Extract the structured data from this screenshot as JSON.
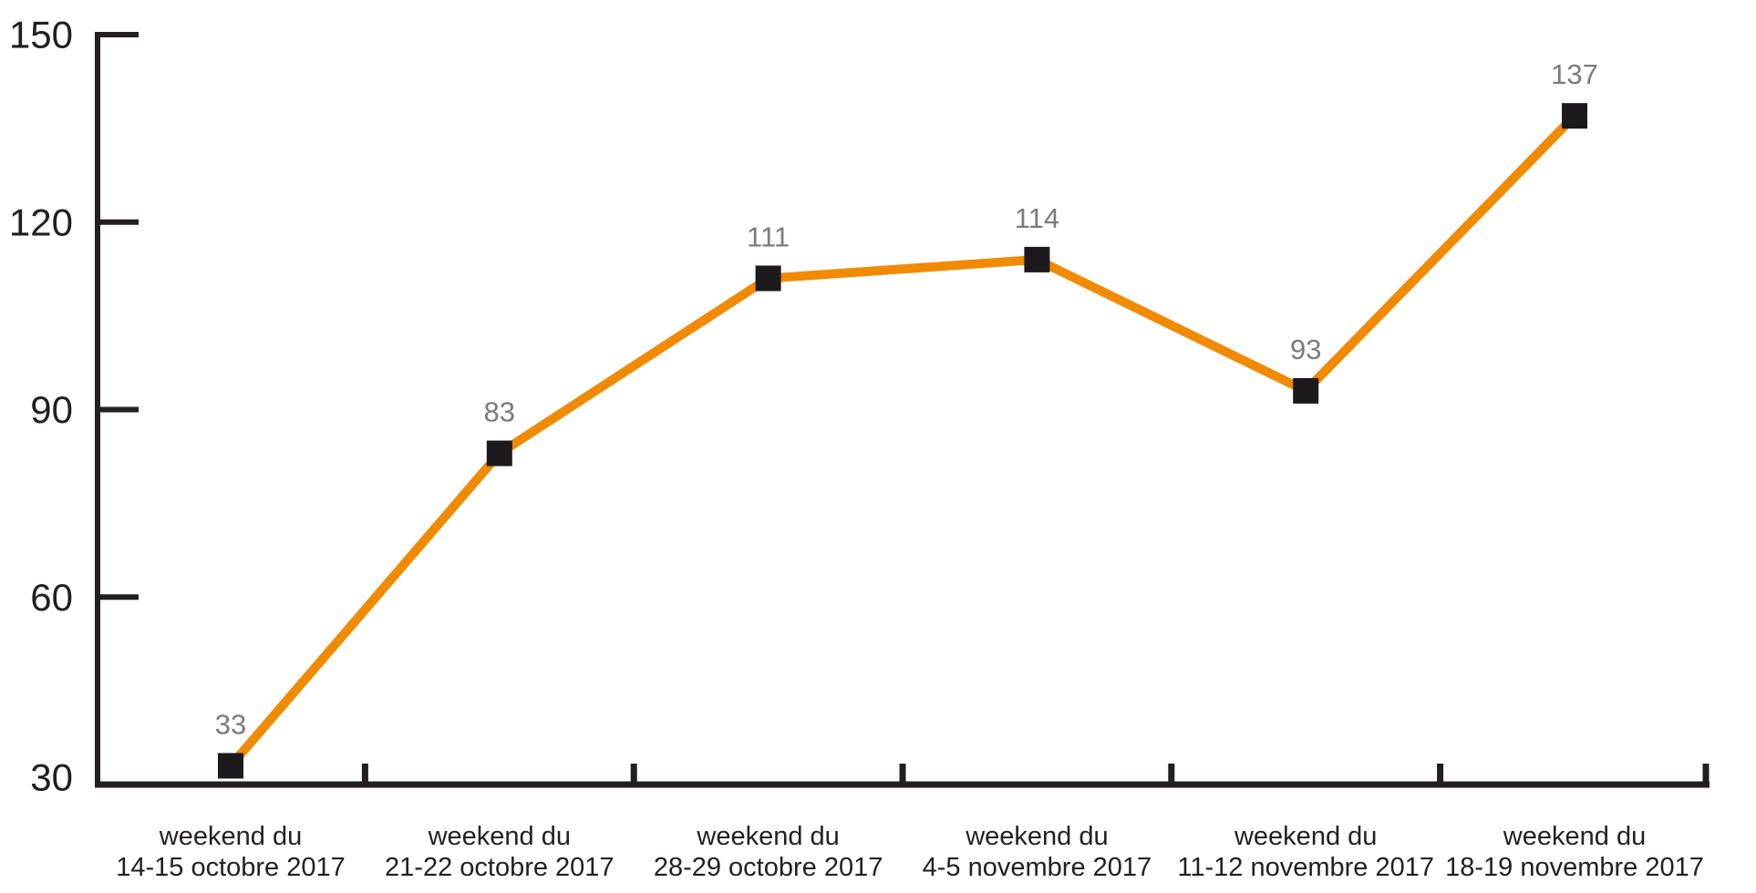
{
  "chart_data": {
    "type": "line",
    "title": "",
    "xlabel": "",
    "ylabel": "",
    "categories": [
      [
        "weekend du",
        "14-15 octobre 2017"
      ],
      [
        "weekend du",
        "21-22 octobre 2017"
      ],
      [
        "weekend du",
        "28-29 octobre 2017"
      ],
      [
        "weekend du",
        "4-5 novembre 2017"
      ],
      [
        "weekend du",
        "11-12 novembre 2017"
      ],
      [
        "weekend du",
        "18-19 novembre 2017"
      ]
    ],
    "values": [
      33,
      83,
      111,
      114,
      93,
      137
    ],
    "value_labels": [
      "33",
      "83",
      "111",
      "114",
      "93",
      "137"
    ],
    "y_ticks": [
      30,
      60,
      90,
      120,
      150
    ],
    "y_tick_labels": [
      "30",
      "60",
      "90",
      "120",
      "150"
    ],
    "ylim": [
      30,
      150
    ],
    "grid": false,
    "legend": "none",
    "marker": "square",
    "colors": {
      "line": "#F08A00",
      "marker": "#1D1A1E",
      "axis": "#231F20",
      "value_label": "#7B7B7B",
      "tick_label": "#231F20",
      "background": "#FFFFFF"
    }
  }
}
